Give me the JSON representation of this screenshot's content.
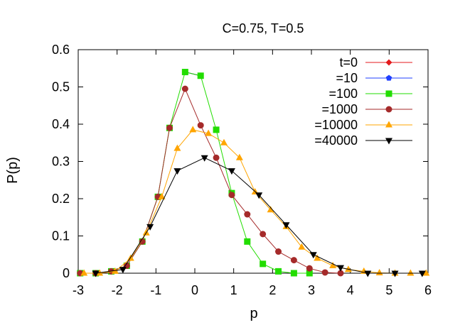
{
  "chart_data": {
    "type": "line",
    "title": "C=0.75, T=0.5",
    "xlabel": "p",
    "ylabel": "P(p)",
    "xlim": [
      -3,
      6
    ],
    "ylim": [
      0,
      0.6
    ],
    "xticks": [
      -3,
      -2,
      -1,
      0,
      1,
      2,
      3,
      4,
      5,
      6
    ],
    "yticks": [
      0,
      0.1,
      0.2,
      0.3,
      0.4,
      0.5,
      0.6
    ],
    "xtick_labels": [
      "-3",
      "-2",
      "-1",
      "0",
      "1",
      "2",
      "3",
      "4",
      "5",
      "6"
    ],
    "ytick_labels": [
      "0",
      "0.1",
      "0.2",
      "0.3",
      "0.4",
      "0.5",
      "0.6"
    ],
    "grid": false,
    "legend_position": "top-right",
    "series": [
      {
        "name": "t=0",
        "color": "#e41a1c",
        "marker": "diamond",
        "points": [
          [
            -0.25,
            0.54
          ],
          [
            0.15,
            0.53
          ]
        ]
      },
      {
        "name": "=10",
        "color": "#1f3fff",
        "marker": "pentagon",
        "points": [
          [
            -0.25,
            0.54
          ],
          [
            0.15,
            0.53
          ]
        ]
      },
      {
        "name": "=100",
        "color": "#22dd00",
        "marker": "square",
        "points": [
          [
            -2.95,
            0.0
          ],
          [
            -2.55,
            0.0
          ],
          [
            -2.15,
            0.005
          ],
          [
            -1.75,
            0.02
          ],
          [
            -1.35,
            0.085
          ],
          [
            -0.95,
            0.205
          ],
          [
            -0.65,
            0.39
          ],
          [
            -0.25,
            0.54
          ],
          [
            0.15,
            0.53
          ],
          [
            0.55,
            0.385
          ],
          [
            0.95,
            0.215
          ],
          [
            1.35,
            0.085
          ],
          [
            1.75,
            0.025
          ],
          [
            2.15,
            0.005
          ],
          [
            2.55,
            0.0
          ],
          [
            2.95,
            0.0
          ]
        ]
      },
      {
        "name": "=1000",
        "color": "#a52a2a",
        "marker": "circle",
        "points": [
          [
            -2.95,
            0.0
          ],
          [
            -2.55,
            0.0
          ],
          [
            -2.15,
            0.005
          ],
          [
            -1.75,
            0.02
          ],
          [
            -1.35,
            0.085
          ],
          [
            -0.95,
            0.205
          ],
          [
            -0.65,
            0.39
          ],
          [
            -0.25,
            0.495
          ],
          [
            0.15,
            0.397
          ],
          [
            0.55,
            0.31
          ],
          [
            0.95,
            0.21
          ],
          [
            1.35,
            0.158
          ],
          [
            1.75,
            0.105
          ],
          [
            2.15,
            0.058
          ],
          [
            2.55,
            0.035
          ],
          [
            2.95,
            0.013
          ],
          [
            3.35,
            0.002
          ],
          [
            3.75,
            0.0
          ]
        ]
      },
      {
        "name": "=10000",
        "color": "#ffa500",
        "marker": "triangle-up",
        "points": [
          [
            -2.85,
            0.0
          ],
          [
            -2.45,
            0.0
          ],
          [
            -2.05,
            0.005
          ],
          [
            -1.65,
            0.04
          ],
          [
            -1.25,
            0.108
          ],
          [
            -0.85,
            0.205
          ],
          [
            -0.45,
            0.335
          ],
          [
            -0.05,
            0.385
          ],
          [
            0.35,
            0.375
          ],
          [
            0.75,
            0.35
          ],
          [
            1.15,
            0.31
          ],
          [
            1.55,
            0.218
          ],
          [
            1.95,
            0.17
          ],
          [
            2.35,
            0.125
          ],
          [
            2.75,
            0.07
          ],
          [
            3.15,
            0.04
          ],
          [
            3.55,
            0.02
          ],
          [
            3.95,
            0.01
          ],
          [
            4.35,
            0.005
          ],
          [
            4.75,
            0.001
          ],
          [
            5.15,
            0.0
          ],
          [
            5.55,
            0.0
          ],
          [
            5.95,
            0.0
          ]
        ]
      },
      {
        "name": "=40000",
        "color": "#000000",
        "marker": "triangle-down",
        "points": [
          [
            -2.55,
            0.0
          ],
          [
            -1.85,
            0.01
          ],
          [
            -1.15,
            0.125
          ],
          [
            -0.45,
            0.275
          ],
          [
            0.25,
            0.31
          ],
          [
            0.95,
            0.275
          ],
          [
            1.65,
            0.21
          ],
          [
            2.35,
            0.13
          ],
          [
            3.05,
            0.05
          ],
          [
            3.75,
            0.015
          ],
          [
            4.45,
            0.0
          ],
          [
            5.15,
            0.0
          ],
          [
            5.85,
            0.0
          ]
        ]
      }
    ]
  }
}
